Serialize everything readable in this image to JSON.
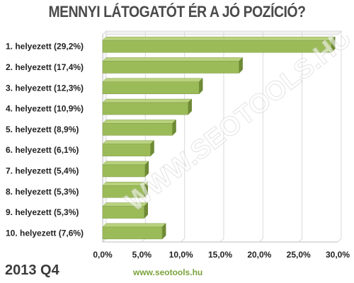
{
  "header": {
    "title": "MENNYI LÁTOGATÓT ÉR A JÓ POZÍCIÓ?"
  },
  "footer": {
    "period": "2013 Q4",
    "site": "www.seotools.hu"
  },
  "watermark": {
    "text": "WWW.SEOTOOLS.HU"
  },
  "colors": {
    "bar_fill": "#9bbb59",
    "bar_top": "#b9d27e",
    "bar_side": "#6e8a34",
    "grid": "#d9d9d9",
    "text": "#222222"
  },
  "chart_data": {
    "type": "bar",
    "orientation": "horizontal",
    "title": "MENNYI LÁTOGATÓT ÉR A JÓ POZÍCIÓ?",
    "categories": [
      "1. helyezett (29,2%)",
      "2. helyezett (17,4%)",
      "3. helyezett (12,3%)",
      "4. helyezett (10,9%)",
      "5. helyezett (8,9%)",
      "6. helyezett (6,1%)",
      "7. helyezett  (5,4%)",
      "8. helyezett (5,3%)",
      "9. helyezett (5,3%)",
      "10. helyezett (7,6%)"
    ],
    "values": [
      29.2,
      17.4,
      12.3,
      10.9,
      8.9,
      6.1,
      5.4,
      5.3,
      5.3,
      7.6
    ],
    "xticks": [
      "0,0%",
      "5,0%",
      "10,0%",
      "15,0%",
      "20,0%",
      "25,0%",
      "30,0%"
    ],
    "xlim": [
      0,
      30
    ],
    "grid": true,
    "legend": "none"
  }
}
